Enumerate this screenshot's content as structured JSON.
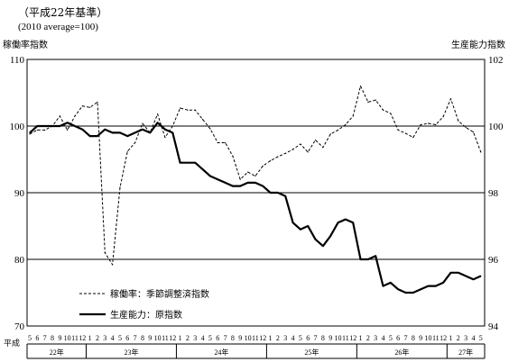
{
  "header": {
    "note_line1": "（平成22年基準）",
    "note_line2": "(2010 average=100)",
    "left_axis_label": "稼働率指数",
    "right_axis_label": "生産能力指数",
    "era_label": "平成"
  },
  "chart_data": {
    "type": "line",
    "y_left": {
      "label": "稼働率指数",
      "lim": [
        70,
        110
      ],
      "ticks": [
        70,
        80,
        90,
        100,
        110
      ]
    },
    "y_right": {
      "label": "生産能力指数",
      "lim": [
        94,
        102
      ],
      "ticks": [
        94,
        96,
        98,
        100,
        102
      ]
    },
    "x": {
      "month_labels": [
        "5",
        "6",
        "7",
        "8",
        "9",
        "10",
        "11",
        "12",
        "1",
        "2",
        "3",
        "4",
        "5",
        "6",
        "7",
        "8",
        "9",
        "10",
        "11",
        "12",
        "1",
        "2",
        "3",
        "4",
        "5",
        "6",
        "7",
        "8",
        "9",
        "10",
        "11",
        "12",
        "1",
        "2",
        "3",
        "4",
        "5",
        "6",
        "7",
        "8",
        "9",
        "10",
        "11",
        "12",
        "1",
        "2",
        "3",
        "4",
        "5",
        "6",
        "7",
        "8",
        "9",
        "10",
        "11",
        "12",
        "1",
        "2",
        "3",
        "4",
        "5"
      ],
      "years": [
        {
          "label": "22年",
          "start": 0,
          "end": 7
        },
        {
          "label": "23年",
          "start": 8,
          "end": 19
        },
        {
          "label": "24年",
          "start": 20,
          "end": 31
        },
        {
          "label": "25年",
          "start": 32,
          "end": 43
        },
        {
          "label": "26年",
          "start": 44,
          "end": 55
        },
        {
          "label": "27年",
          "start": 56,
          "end": 60
        }
      ]
    },
    "gridlines": [
      80,
      90,
      100
    ],
    "series": [
      {
        "name": "稼働率：季節調整済指数",
        "axis": "left",
        "style": "dashed",
        "values": [
          98.8,
          99.4,
          99.4,
          100.0,
          101.5,
          99.4,
          101.5,
          103.0,
          102.8,
          103.6,
          81.0,
          79.2,
          90.8,
          96.2,
          97.5,
          100.4,
          99.0,
          101.8,
          98.3,
          100.0,
          102.7,
          102.4,
          102.4,
          101.0,
          99.6,
          97.5,
          97.5,
          95.5,
          92.0,
          93.1,
          92.5,
          94.0,
          94.8,
          95.4,
          95.9,
          96.5,
          97.3,
          96.1,
          97.9,
          96.8,
          98.8,
          99.4,
          100.2,
          101.5,
          106.0,
          103.6,
          103.9,
          102.4,
          101.9,
          99.4,
          98.9,
          98.3,
          100.2,
          100.4,
          100.2,
          101.4,
          104.1,
          100.8,
          99.8,
          99.1,
          96.1
        ]
      },
      {
        "name": "生産能力：原指数",
        "axis": "right",
        "style": "solid",
        "values": [
          99.8,
          100.0,
          100.0,
          100.0,
          100.0,
          100.1,
          100.0,
          99.9,
          99.7,
          99.7,
          99.9,
          99.8,
          99.8,
          99.7,
          99.8,
          99.9,
          99.8,
          100.1,
          99.9,
          99.8,
          98.9,
          98.9,
          98.9,
          98.7,
          98.5,
          98.4,
          98.3,
          98.2,
          98.2,
          98.3,
          98.3,
          98.2,
          98.0,
          98.0,
          97.9,
          97.1,
          96.9,
          97.0,
          96.6,
          96.4,
          96.7,
          97.1,
          97.2,
          97.1,
          96.0,
          96.0,
          96.1,
          95.2,
          95.3,
          95.1,
          95.0,
          95.0,
          95.1,
          95.2,
          95.2,
          95.3,
          95.6,
          95.6,
          95.5,
          95.4,
          95.5
        ]
      }
    ]
  }
}
